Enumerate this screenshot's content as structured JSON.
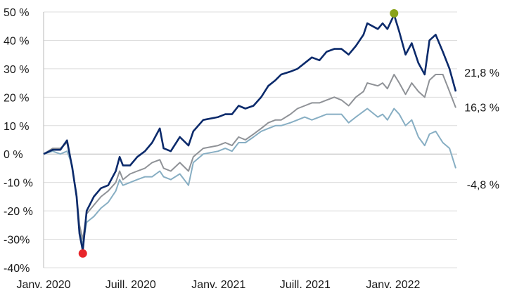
{
  "chart_data": {
    "type": "line",
    "title": "",
    "xlabel": "",
    "ylabel": "",
    "ylim": [
      -40,
      50
    ],
    "yticks": [
      {
        "value": 50,
        "label": "50 %"
      },
      {
        "value": 40,
        "label": "40 %"
      },
      {
        "value": 30,
        "label": "30 %"
      },
      {
        "value": 20,
        "label": "20 %"
      },
      {
        "value": 10,
        "label": "10 %"
      },
      {
        "value": 0,
        "label": "0 %"
      },
      {
        "value": -10,
        "label": "-10 %"
      },
      {
        "value": -20,
        "label": "-20 %"
      },
      {
        "value": -30,
        "label": "-30%"
      },
      {
        "value": -40,
        "label": "-40%"
      }
    ],
    "xlim": [
      "2020-01-01",
      "2022-05-15"
    ],
    "xticks": [
      {
        "value": "2020-01-01",
        "label": "Janv. 2020"
      },
      {
        "value": "2020-07-01",
        "label": "Juill. 2020"
      },
      {
        "value": "2021-01-01",
        "label": "Janv. 2021"
      },
      {
        "value": "2021-07-01",
        "label": "Juill. 2021"
      },
      {
        "value": "2022-01-01",
        "label": "Janv. 2022"
      }
    ],
    "grid": true,
    "series": [
      {
        "color": "#0b2a6b",
        "end_label": "21,8 %",
        "points": [
          [
            "2020-01-01",
            0
          ],
          [
            "2020-01-20",
            1.5
          ],
          [
            "2020-02-05",
            1.5
          ],
          [
            "2020-02-19",
            4.8
          ],
          [
            "2020-03-01",
            -5
          ],
          [
            "2020-03-10",
            -15
          ],
          [
            "2020-03-16",
            -28
          ],
          [
            "2020-03-23",
            -34
          ],
          [
            "2020-03-31",
            -20
          ],
          [
            "2020-04-15",
            -15
          ],
          [
            "2020-04-30",
            -12
          ],
          [
            "2020-05-15",
            -11
          ],
          [
            "2020-05-31",
            -6
          ],
          [
            "2020-06-08",
            -1
          ],
          [
            "2020-06-15",
            -4
          ],
          [
            "2020-06-30",
            -4
          ],
          [
            "2020-07-15",
            -1
          ],
          [
            "2020-07-31",
            1
          ],
          [
            "2020-08-15",
            4
          ],
          [
            "2020-08-31",
            9
          ],
          [
            "2020-09-08",
            2
          ],
          [
            "2020-09-23",
            1
          ],
          [
            "2020-10-12",
            6
          ],
          [
            "2020-10-30",
            3
          ],
          [
            "2020-11-09",
            8
          ],
          [
            "2020-11-30",
            12
          ],
          [
            "2020-12-31",
            13
          ],
          [
            "2021-01-15",
            14
          ],
          [
            "2021-01-29",
            14
          ],
          [
            "2021-02-12",
            17
          ],
          [
            "2021-02-26",
            16
          ],
          [
            "2021-03-15",
            17
          ],
          [
            "2021-03-31",
            20
          ],
          [
            "2021-04-15",
            24
          ],
          [
            "2021-04-30",
            26
          ],
          [
            "2021-05-12",
            28
          ],
          [
            "2021-05-31",
            29
          ],
          [
            "2021-06-15",
            30
          ],
          [
            "2021-06-30",
            32
          ],
          [
            "2021-07-15",
            34
          ],
          [
            "2021-07-31",
            33
          ],
          [
            "2021-08-15",
            36
          ],
          [
            "2021-08-31",
            37
          ],
          [
            "2021-09-15",
            37
          ],
          [
            "2021-09-30",
            35
          ],
          [
            "2021-10-15",
            38
          ],
          [
            "2021-10-31",
            42
          ],
          [
            "2021-11-08",
            46
          ],
          [
            "2021-11-30",
            44
          ],
          [
            "2021-12-10",
            46
          ],
          [
            "2021-12-20",
            44
          ],
          [
            "2022-01-03",
            49
          ],
          [
            "2022-01-14",
            43
          ],
          [
            "2022-01-27",
            35
          ],
          [
            "2022-02-09",
            39
          ],
          [
            "2022-02-23",
            32
          ],
          [
            "2022-03-08",
            28
          ],
          [
            "2022-03-18",
            40
          ],
          [
            "2022-03-31",
            42
          ],
          [
            "2022-04-15",
            36
          ],
          [
            "2022-04-29",
            30
          ],
          [
            "2022-05-12",
            22
          ]
        ]
      },
      {
        "color": "#8f9297",
        "end_label": "16,3 %",
        "points": [
          [
            "2020-01-01",
            0
          ],
          [
            "2020-01-20",
            2
          ],
          [
            "2020-02-05",
            2
          ],
          [
            "2020-02-19",
            4
          ],
          [
            "2020-03-01",
            -5
          ],
          [
            "2020-03-10",
            -14
          ],
          [
            "2020-03-16",
            -25
          ],
          [
            "2020-03-23",
            -30
          ],
          [
            "2020-03-31",
            -21
          ],
          [
            "2020-04-15",
            -18
          ],
          [
            "2020-04-30",
            -15
          ],
          [
            "2020-05-15",
            -13
          ],
          [
            "2020-05-31",
            -10
          ],
          [
            "2020-06-08",
            -6
          ],
          [
            "2020-06-15",
            -9
          ],
          [
            "2020-06-30",
            -7
          ],
          [
            "2020-07-15",
            -6
          ],
          [
            "2020-07-31",
            -5
          ],
          [
            "2020-08-15",
            -3
          ],
          [
            "2020-08-31",
            -2
          ],
          [
            "2020-09-08",
            -5
          ],
          [
            "2020-09-23",
            -6
          ],
          [
            "2020-10-12",
            -3
          ],
          [
            "2020-10-30",
            -6
          ],
          [
            "2020-11-09",
            -1
          ],
          [
            "2020-11-30",
            2
          ],
          [
            "2020-12-31",
            3
          ],
          [
            "2021-01-15",
            4
          ],
          [
            "2021-01-29",
            3
          ],
          [
            "2021-02-12",
            6
          ],
          [
            "2021-02-26",
            5
          ],
          [
            "2021-03-15",
            7
          ],
          [
            "2021-03-31",
            9
          ],
          [
            "2021-04-15",
            11
          ],
          [
            "2021-04-30",
            12
          ],
          [
            "2021-05-12",
            12
          ],
          [
            "2021-05-31",
            14
          ],
          [
            "2021-06-15",
            16
          ],
          [
            "2021-06-30",
            17
          ],
          [
            "2021-07-15",
            18
          ],
          [
            "2021-07-31",
            18
          ],
          [
            "2021-08-15",
            19
          ],
          [
            "2021-08-31",
            20
          ],
          [
            "2021-09-15",
            19
          ],
          [
            "2021-09-30",
            17
          ],
          [
            "2021-10-15",
            20
          ],
          [
            "2021-10-31",
            22
          ],
          [
            "2021-11-08",
            25
          ],
          [
            "2021-11-30",
            24
          ],
          [
            "2021-12-10",
            25
          ],
          [
            "2021-12-20",
            23
          ],
          [
            "2022-01-03",
            28
          ],
          [
            "2022-01-14",
            25
          ],
          [
            "2022-01-27",
            21
          ],
          [
            "2022-02-09",
            25
          ],
          [
            "2022-02-23",
            22
          ],
          [
            "2022-03-08",
            20
          ],
          [
            "2022-03-18",
            26
          ],
          [
            "2022-03-31",
            28
          ],
          [
            "2022-04-15",
            28
          ],
          [
            "2022-04-29",
            22
          ],
          [
            "2022-05-12",
            16.3
          ]
        ]
      },
      {
        "color": "#87aec3",
        "end_label": "-4,8 %",
        "points": [
          [
            "2020-01-01",
            0
          ],
          [
            "2020-01-20",
            1
          ],
          [
            "2020-02-05",
            0
          ],
          [
            "2020-02-19",
            1
          ],
          [
            "2020-03-01",
            -4
          ],
          [
            "2020-03-10",
            -15
          ],
          [
            "2020-03-16",
            -27
          ],
          [
            "2020-03-23",
            -32
          ],
          [
            "2020-03-31",
            -24
          ],
          [
            "2020-04-15",
            -22
          ],
          [
            "2020-04-30",
            -19
          ],
          [
            "2020-05-15",
            -17
          ],
          [
            "2020-05-31",
            -13
          ],
          [
            "2020-06-08",
            -9
          ],
          [
            "2020-06-15",
            -11
          ],
          [
            "2020-06-30",
            -10
          ],
          [
            "2020-07-15",
            -9
          ],
          [
            "2020-07-31",
            -8
          ],
          [
            "2020-08-15",
            -8
          ],
          [
            "2020-08-31",
            -6
          ],
          [
            "2020-09-08",
            -8
          ],
          [
            "2020-09-23",
            -9
          ],
          [
            "2020-10-12",
            -7
          ],
          [
            "2020-10-30",
            -11
          ],
          [
            "2020-11-09",
            -3
          ],
          [
            "2020-11-30",
            0
          ],
          [
            "2020-12-31",
            1
          ],
          [
            "2021-01-15",
            2
          ],
          [
            "2021-01-29",
            1
          ],
          [
            "2021-02-12",
            4
          ],
          [
            "2021-02-26",
            4
          ],
          [
            "2021-03-15",
            6
          ],
          [
            "2021-03-31",
            8
          ],
          [
            "2021-04-15",
            9
          ],
          [
            "2021-04-30",
            10
          ],
          [
            "2021-05-12",
            10
          ],
          [
            "2021-05-31",
            11
          ],
          [
            "2021-06-15",
            12
          ],
          [
            "2021-06-30",
            13
          ],
          [
            "2021-07-15",
            12
          ],
          [
            "2021-07-31",
            13
          ],
          [
            "2021-08-15",
            14
          ],
          [
            "2021-08-31",
            14
          ],
          [
            "2021-09-15",
            14
          ],
          [
            "2021-09-30",
            11
          ],
          [
            "2021-10-15",
            13
          ],
          [
            "2021-10-31",
            15
          ],
          [
            "2021-11-08",
            16
          ],
          [
            "2021-11-30",
            13
          ],
          [
            "2021-12-10",
            14
          ],
          [
            "2021-12-20",
            12
          ],
          [
            "2022-01-03",
            16
          ],
          [
            "2022-01-14",
            14
          ],
          [
            "2022-01-27",
            10
          ],
          [
            "2022-02-09",
            12
          ],
          [
            "2022-02-23",
            6
          ],
          [
            "2022-03-08",
            3
          ],
          [
            "2022-03-18",
            7
          ],
          [
            "2022-03-31",
            8
          ],
          [
            "2022-04-15",
            4
          ],
          [
            "2022-04-29",
            2
          ],
          [
            "2022-05-12",
            -5
          ]
        ]
      }
    ],
    "markers": [
      {
        "x": "2020-03-23",
        "y": -35,
        "color": "#e8262b"
      },
      {
        "x": "2022-01-03",
        "y": 49.5,
        "color": "#8aa31a"
      }
    ]
  }
}
